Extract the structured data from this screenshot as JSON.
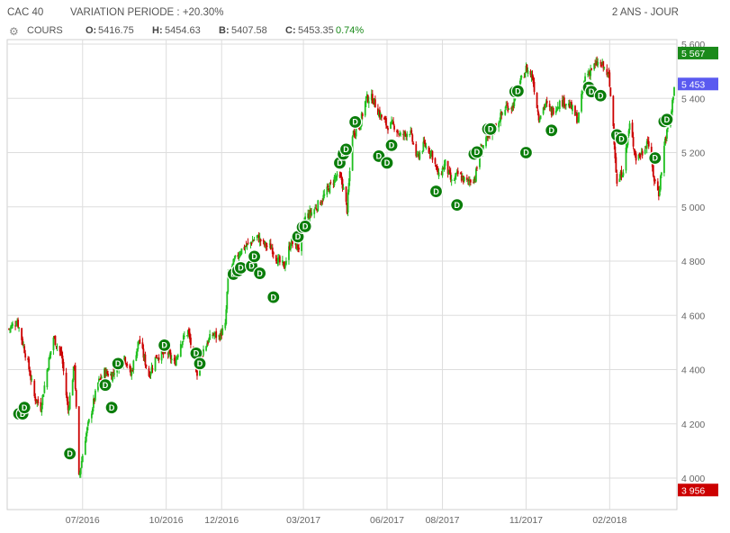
{
  "header": {
    "instrument": "CAC 40",
    "variation": "VARIATION PERIODE : +20.30%",
    "timeframe": "2 ANS - JOUR"
  },
  "legend": {
    "series_label": "COURS",
    "open_key": "O:",
    "open_val": "5416.75",
    "high_key": "H:",
    "high_val": "5454.63",
    "low_key": "B:",
    "low_val": "5407.58",
    "close_key": "C:",
    "close_val": "5453.35",
    "change": "0.74%"
  },
  "colors": {
    "up": "#1fbf1f",
    "down": "#cc0000",
    "marker": "#0a7d0a",
    "grid": "#dddddd",
    "tag_high": "#1a8a1a",
    "tag_last": "#5a5af0",
    "tag_low": "#cc0000",
    "change_text": "#1a8a1a"
  },
  "chart_data": {
    "type": "candlestick",
    "title": "CAC 40",
    "ylim": [
      3930,
      5640
    ],
    "y_ticks": [
      {
        "value": 4000,
        "label": "4 000"
      },
      {
        "value": 4200,
        "label": "4 200"
      },
      {
        "value": 4400,
        "label": "4 400"
      },
      {
        "value": 4600,
        "label": "4 600"
      },
      {
        "value": 4800,
        "label": "4 800"
      },
      {
        "value": 5000,
        "label": "5 000"
      },
      {
        "value": 5200,
        "label": "5 200"
      },
      {
        "value": 5400,
        "label": "5 400"
      },
      {
        "value": 5600,
        "label": "5 600"
      }
    ],
    "x_ticks": [
      {
        "date": "2016-07-01",
        "label": "07/2016"
      },
      {
        "date": "2016-10-01",
        "label": "10/2016"
      },
      {
        "date": "2016-12-01",
        "label": "12/2016"
      },
      {
        "date": "2017-03-01",
        "label": "03/2017"
      },
      {
        "date": "2017-06-01",
        "label": "06/2017"
      },
      {
        "date": "2017-08-01",
        "label": "08/2017"
      },
      {
        "date": "2017-11-01",
        "label": "11/2017"
      },
      {
        "date": "2018-02-01",
        "label": "02/2018"
      }
    ],
    "x_start": "2016-04-11",
    "x_end": "2018-04-13",
    "path_points": [
      {
        "date": "2016-04-11",
        "value": 4550
      },
      {
        "date": "2016-04-20",
        "value": 4580
      },
      {
        "date": "2016-05-02",
        "value": 4420
      },
      {
        "date": "2016-05-09",
        "value": 4300
      },
      {
        "date": "2016-05-16",
        "value": 4260
      },
      {
        "date": "2016-05-23",
        "value": 4400
      },
      {
        "date": "2016-05-30",
        "value": 4520
      },
      {
        "date": "2016-06-08",
        "value": 4450
      },
      {
        "date": "2016-06-15",
        "value": 4250
      },
      {
        "date": "2016-06-22",
        "value": 4420
      },
      {
        "date": "2016-06-27",
        "value": 4000
      },
      {
        "date": "2016-07-04",
        "value": 4150
      },
      {
        "date": "2016-07-11",
        "value": 4250
      },
      {
        "date": "2016-07-18",
        "value": 4350
      },
      {
        "date": "2016-07-25",
        "value": 4390
      },
      {
        "date": "2016-08-02",
        "value": 4380
      },
      {
        "date": "2016-08-09",
        "value": 4420
      },
      {
        "date": "2016-08-16",
        "value": 4450
      },
      {
        "date": "2016-08-23",
        "value": 4380
      },
      {
        "date": "2016-09-01",
        "value": 4510
      },
      {
        "date": "2016-09-12",
        "value": 4380
      },
      {
        "date": "2016-09-20",
        "value": 4450
      },
      {
        "date": "2016-10-03",
        "value": 4460
      },
      {
        "date": "2016-10-10",
        "value": 4420
      },
      {
        "date": "2016-10-17",
        "value": 4500
      },
      {
        "date": "2016-10-25",
        "value": 4540
      },
      {
        "date": "2016-11-04",
        "value": 4390
      },
      {
        "date": "2016-11-09",
        "value": 4460
      },
      {
        "date": "2016-11-15",
        "value": 4500
      },
      {
        "date": "2016-11-21",
        "value": 4530
      },
      {
        "date": "2016-11-28",
        "value": 4520
      },
      {
        "date": "2016-12-05",
        "value": 4560
      },
      {
        "date": "2016-12-08",
        "value": 4740
      },
      {
        "date": "2016-12-15",
        "value": 4800
      },
      {
        "date": "2016-12-22",
        "value": 4840
      },
      {
        "date": "2016-12-30",
        "value": 4860
      },
      {
        "date": "2017-01-09",
        "value": 4890
      },
      {
        "date": "2017-01-17",
        "value": 4860
      },
      {
        "date": "2017-01-25",
        "value": 4850
      },
      {
        "date": "2017-02-01",
        "value": 4800
      },
      {
        "date": "2017-02-08",
        "value": 4780
      },
      {
        "date": "2017-02-15",
        "value": 4870
      },
      {
        "date": "2017-02-24",
        "value": 4850
      },
      {
        "date": "2017-03-03",
        "value": 4960
      },
      {
        "date": "2017-03-10",
        "value": 4980
      },
      {
        "date": "2017-03-20",
        "value": 5020
      },
      {
        "date": "2017-03-29",
        "value": 5070
      },
      {
        "date": "2017-04-05",
        "value": 5110
      },
      {
        "date": "2017-04-12",
        "value": 5100
      },
      {
        "date": "2017-04-18",
        "value": 4990
      },
      {
        "date": "2017-04-24",
        "value": 5270
      },
      {
        "date": "2017-05-02",
        "value": 5300
      },
      {
        "date": "2017-05-09",
        "value": 5400
      },
      {
        "date": "2017-05-16",
        "value": 5400
      },
      {
        "date": "2017-05-24",
        "value": 5340
      },
      {
        "date": "2017-06-01",
        "value": 5300
      },
      {
        "date": "2017-06-09",
        "value": 5300
      },
      {
        "date": "2017-06-16",
        "value": 5260
      },
      {
        "date": "2017-06-26",
        "value": 5280
      },
      {
        "date": "2017-07-04",
        "value": 5180
      },
      {
        "date": "2017-07-12",
        "value": 5230
      },
      {
        "date": "2017-07-20",
        "value": 5200
      },
      {
        "date": "2017-07-28",
        "value": 5110
      },
      {
        "date": "2017-08-04",
        "value": 5160
      },
      {
        "date": "2017-08-11",
        "value": 5090
      },
      {
        "date": "2017-08-18",
        "value": 5120
      },
      {
        "date": "2017-08-28",
        "value": 5090
      },
      {
        "date": "2017-09-06",
        "value": 5110
      },
      {
        "date": "2017-09-12",
        "value": 5210
      },
      {
        "date": "2017-09-20",
        "value": 5250
      },
      {
        "date": "2017-10-02",
        "value": 5320
      },
      {
        "date": "2017-10-10",
        "value": 5370
      },
      {
        "date": "2017-10-17",
        "value": 5370
      },
      {
        "date": "2017-10-25",
        "value": 5450
      },
      {
        "date": "2017-11-01",
        "value": 5510
      },
      {
        "date": "2017-11-08",
        "value": 5480
      },
      {
        "date": "2017-11-15",
        "value": 5330
      },
      {
        "date": "2017-11-22",
        "value": 5380
      },
      {
        "date": "2017-11-29",
        "value": 5350
      },
      {
        "date": "2017-12-06",
        "value": 5380
      },
      {
        "date": "2017-12-13",
        "value": 5390
      },
      {
        "date": "2017-12-20",
        "value": 5370
      },
      {
        "date": "2017-12-28",
        "value": 5320
      },
      {
        "date": "2018-01-05",
        "value": 5480
      },
      {
        "date": "2018-01-12",
        "value": 5510
      },
      {
        "date": "2018-01-19",
        "value": 5530
      },
      {
        "date": "2018-01-24",
        "value": 5520
      },
      {
        "date": "2018-01-31",
        "value": 5480
      },
      {
        "date": "2018-02-05",
        "value": 5300
      },
      {
        "date": "2018-02-09",
        "value": 5080
      },
      {
        "date": "2018-02-16",
        "value": 5140
      },
      {
        "date": "2018-02-23",
        "value": 5300
      },
      {
        "date": "2018-03-02",
        "value": 5180
      },
      {
        "date": "2018-03-09",
        "value": 5200
      },
      {
        "date": "2018-03-15",
        "value": 5250
      },
      {
        "date": "2018-03-22",
        "value": 5100
      },
      {
        "date": "2018-03-27",
        "value": 5050
      },
      {
        "date": "2018-04-03",
        "value": 5250
      },
      {
        "date": "2018-04-09",
        "value": 5320
      },
      {
        "date": "2018-04-13",
        "value": 5450
      }
    ],
    "dividend_markers": [
      {
        "date": "2016-04-22",
        "value": 4237
      },
      {
        "date": "2016-04-26",
        "value": 4237
      },
      {
        "date": "2016-04-28",
        "value": 4260
      },
      {
        "date": "2016-06-17",
        "value": 4090
      },
      {
        "date": "2016-07-26",
        "value": 4343
      },
      {
        "date": "2016-08-02",
        "value": 4260
      },
      {
        "date": "2016-08-09",
        "value": 4422
      },
      {
        "date": "2016-09-29",
        "value": 4490
      },
      {
        "date": "2016-11-03",
        "value": 4460
      },
      {
        "date": "2016-11-07",
        "value": 4422
      },
      {
        "date": "2016-12-14",
        "value": 4752
      },
      {
        "date": "2016-12-19",
        "value": 4765
      },
      {
        "date": "2016-12-22",
        "value": 4775
      },
      {
        "date": "2017-01-03",
        "value": 4782
      },
      {
        "date": "2017-01-06",
        "value": 4817
      },
      {
        "date": "2017-01-12",
        "value": 4755
      },
      {
        "date": "2017-01-27",
        "value": 4667
      },
      {
        "date": "2017-02-23",
        "value": 4890
      },
      {
        "date": "2017-02-28",
        "value": 4925
      },
      {
        "date": "2017-03-03",
        "value": 4928
      },
      {
        "date": "2017-04-10",
        "value": 5162
      },
      {
        "date": "2017-04-14",
        "value": 5195
      },
      {
        "date": "2017-04-17",
        "value": 5212
      },
      {
        "date": "2017-04-27",
        "value": 5313
      },
      {
        "date": "2017-05-23",
        "value": 5187
      },
      {
        "date": "2017-06-01",
        "value": 5162
      },
      {
        "date": "2017-06-06",
        "value": 5227
      },
      {
        "date": "2017-07-25",
        "value": 5057
      },
      {
        "date": "2017-08-17",
        "value": 5007
      },
      {
        "date": "2017-09-05",
        "value": 5195
      },
      {
        "date": "2017-09-08",
        "value": 5202
      },
      {
        "date": "2017-09-20",
        "value": 5287
      },
      {
        "date": "2017-09-23",
        "value": 5287
      },
      {
        "date": "2017-10-20",
        "value": 5425
      },
      {
        "date": "2017-10-23",
        "value": 5427
      },
      {
        "date": "2017-11-01",
        "value": 5200
      },
      {
        "date": "2017-11-29",
        "value": 5282
      },
      {
        "date": "2018-01-09",
        "value": 5440
      },
      {
        "date": "2018-01-12",
        "value": 5425
      },
      {
        "date": "2018-01-22",
        "value": 5410
      },
      {
        "date": "2018-02-09",
        "value": 5265
      },
      {
        "date": "2018-02-14",
        "value": 5250
      },
      {
        "date": "2018-03-23",
        "value": 5180
      },
      {
        "date": "2018-04-02",
        "value": 5315
      },
      {
        "date": "2018-04-05",
        "value": 5322
      }
    ],
    "price_tags": [
      {
        "name": "period-high",
        "label": "5 567",
        "value": 5567,
        "color": "#1a8a1a"
      },
      {
        "name": "last-price",
        "label": "5 453",
        "value": 5453,
        "color": "#5a5af0"
      },
      {
        "name": "period-low",
        "label": "3 956",
        "value": 3956,
        "color": "#cc0000"
      }
    ],
    "marker_label": "D",
    "grid": true
  }
}
